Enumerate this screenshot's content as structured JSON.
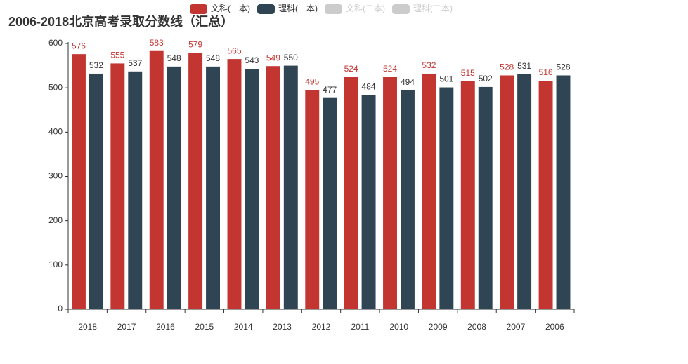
{
  "chart_data": {
    "type": "bar",
    "title": "2006-2018北京高考录取分数线（汇总）",
    "categories": [
      "2018",
      "2017",
      "2016",
      "2015",
      "2014",
      "2013",
      "2012",
      "2011",
      "2010",
      "2009",
      "2008",
      "2007",
      "2006"
    ],
    "series": [
      {
        "name": "文科(一本)",
        "color": "#c23531",
        "values": [
          576,
          555,
          583,
          579,
          565,
          549,
          495,
          524,
          524,
          532,
          515,
          528,
          516
        ]
      },
      {
        "name": "理科(一本)",
        "color": "#2f4554",
        "values": [
          532,
          537,
          548,
          548,
          543,
          550,
          477,
          484,
          494,
          501,
          502,
          531,
          528
        ]
      },
      {
        "name": "文科(二本)",
        "color": "#cccccc",
        "hidden": true
      },
      {
        "name": "理科(二本)",
        "color": "#cccccc",
        "hidden": true
      }
    ],
    "ylim": [
      0,
      600
    ],
    "yticks": [
      0,
      100,
      200,
      300,
      400,
      500,
      600
    ],
    "grid": false,
    "legend": "top"
  }
}
